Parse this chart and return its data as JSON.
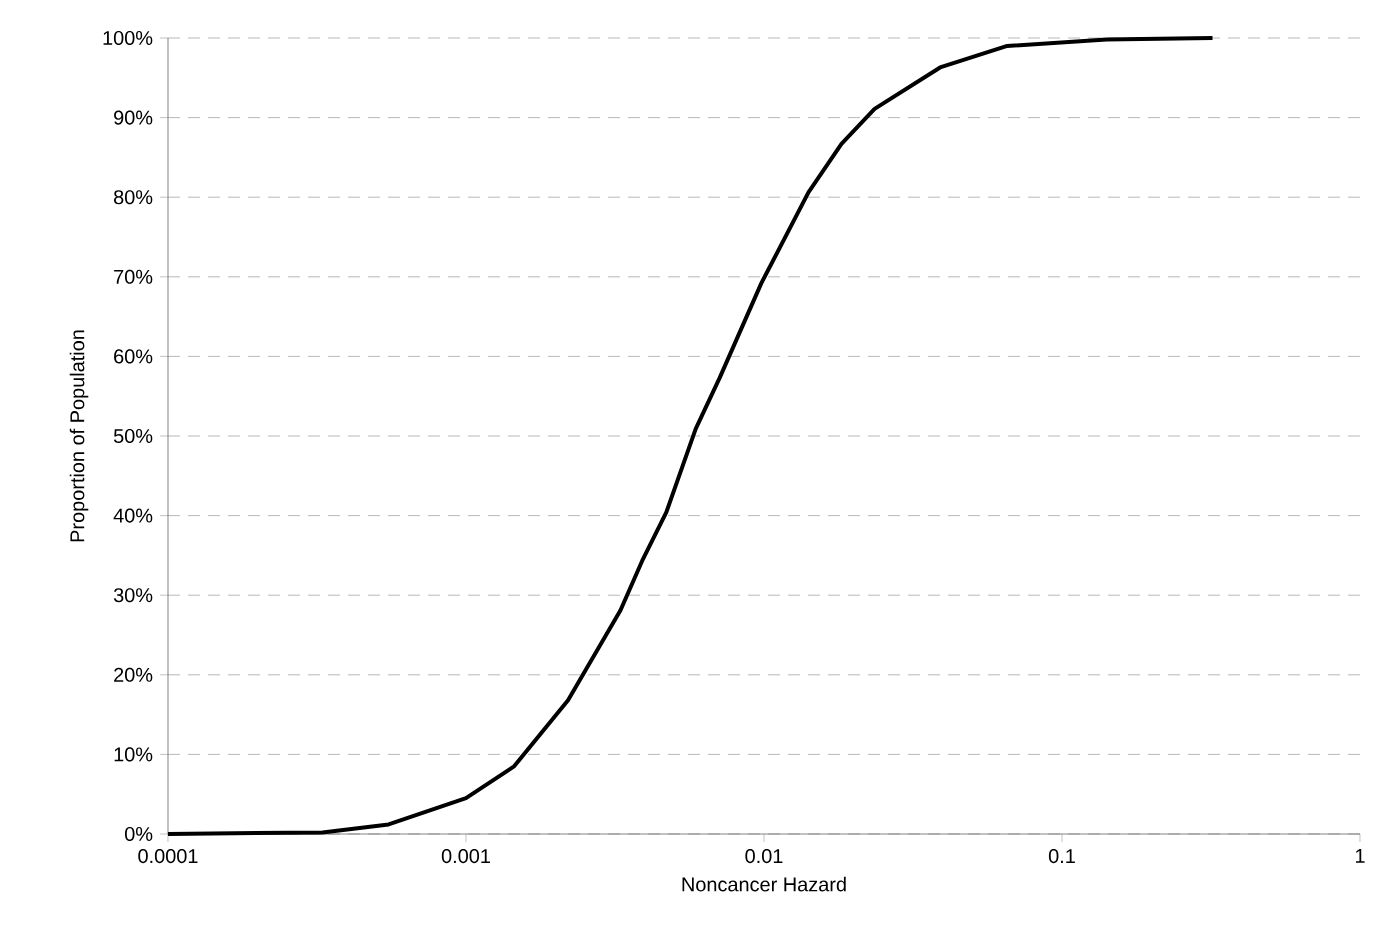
{
  "chart_data": {
    "type": "line",
    "xlabel": "Noncancer Hazard",
    "ylabel": "Proportion of Population",
    "log": "x",
    "grid": "y",
    "marker": "none",
    "line_style": "solid",
    "xlim": [
      0.0001,
      1
    ],
    "xticks": [
      0.0001,
      0.001,
      0.01,
      0.1,
      1
    ],
    "ylim": [
      0,
      100
    ],
    "yticks": [
      {
        "value": 0,
        "label": "0%"
      },
      {
        "value": 10,
        "label": "10%"
      },
      {
        "value": 20,
        "label": "20%"
      },
      {
        "value": 30,
        "label": "30%"
      },
      {
        "value": 40,
        "label": "40%"
      },
      {
        "value": 50,
        "label": "50%"
      },
      {
        "value": 60,
        "label": "60%"
      },
      {
        "value": 70,
        "label": "70%"
      },
      {
        "value": 80,
        "label": "80%"
      },
      {
        "value": 90,
        "label": "90%"
      },
      {
        "value": 100,
        "label": "100%"
      }
    ],
    "series": [
      {
        "color": "#000000",
        "x": [
          0.0001,
          0.00033,
          0.00055,
          0.001,
          0.00145,
          0.0022,
          0.0033,
          0.0039,
          0.0047,
          0.0059,
          0.0071,
          0.0098,
          0.0141,
          0.0182,
          0.0235,
          0.039,
          0.0655,
          0.141,
          0.32
        ],
        "values": [
          0,
          0.2,
          1.2,
          4.5,
          8.5,
          16.8,
          28.1,
          34.3,
          40.4,
          50.9,
          57.3,
          69.2,
          80.6,
          86.7,
          91.1,
          96.3,
          99.0,
          99.8,
          100
        ]
      }
    ]
  }
}
